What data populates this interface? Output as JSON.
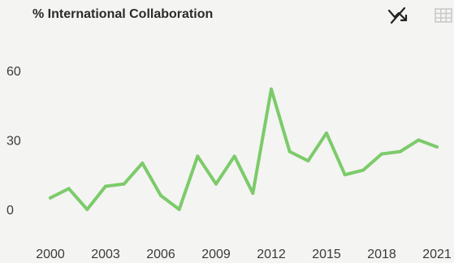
{
  "chart_data": {
    "type": "line",
    "title": "% International Collaboration",
    "xlabel": "",
    "ylabel": "",
    "x": [
      2000,
      2001,
      2002,
      2003,
      2004,
      2005,
      2006,
      2007,
      2008,
      2009,
      2010,
      2011,
      2012,
      2013,
      2014,
      2015,
      2016,
      2017,
      2018,
      2019,
      2020,
      2021
    ],
    "series": [
      {
        "values": [
          5,
          9,
          0,
          10,
          11,
          20,
          6,
          0,
          23,
          11,
          23,
          7,
          52,
          25,
          21,
          33,
          15,
          17,
          24,
          25,
          30,
          27
        ],
        "color": "#7ccb6a"
      }
    ],
    "xticks": [
      "2000",
      "2003",
      "2006",
      "2009",
      "2012",
      "2015",
      "2018",
      "2021"
    ],
    "yticks": [
      "0",
      "30",
      "60"
    ],
    "xlim": [
      2000,
      2021
    ],
    "ylim": [
      0,
      60
    ],
    "grid": false,
    "legend": "none"
  },
  "toolbar": {
    "trend_icon": "trending-down-off-icon",
    "table_icon": "table-grid-icon",
    "icon_color": "#222222",
    "table_icon_color": "#c9c9c9"
  }
}
